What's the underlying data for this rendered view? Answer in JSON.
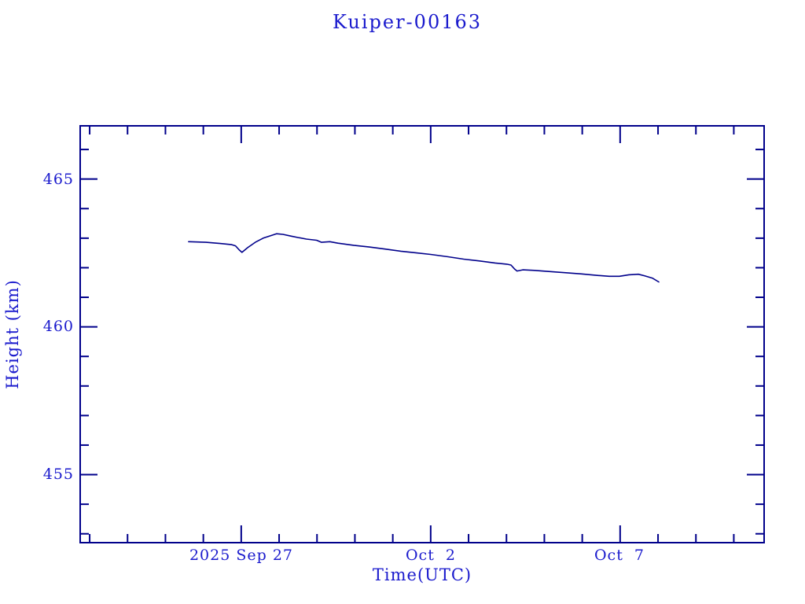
{
  "page": {
    "background_color": "#ffffff",
    "text_color": "#1a1acd",
    "axis_color": "#00008B"
  },
  "chart_data": {
    "type": "line",
    "title": "Kuiper-00163",
    "xlabel": "Time(UTC)",
    "ylabel": "Height (km)",
    "grid": false,
    "legend": null,
    "line_color": "#00008B",
    "axis_color": "#00008B",
    "x_tick_labels": [
      "2025 Sep 27",
      "Oct  2",
      "Oct  7"
    ],
    "x_major_tick_days": [
      0,
      5,
      10
    ],
    "x_minor_tick_step_days": 1,
    "xlim_days_since_sep27": [
      -4.25,
      13.8
    ],
    "y_tick_labels": [
      "465",
      "460",
      "455"
    ],
    "y_major_tick_values": [
      465,
      460,
      455
    ],
    "y_minor_tick_step_km": 1,
    "ylim_km": [
      452.7,
      466.8
    ],
    "series": [
      {
        "name": "Kuiper-00163 height (km) vs days since 2025 Sep 27",
        "points": [
          [
            -1.39,
            462.88
          ],
          [
            -0.93,
            462.86
          ],
          [
            -0.56,
            462.82
          ],
          [
            -0.25,
            462.78
          ],
          [
            -0.15,
            462.74
          ],
          [
            -0.05,
            462.6
          ],
          [
            0.02,
            462.52
          ],
          [
            0.17,
            462.68
          ],
          [
            0.37,
            462.86
          ],
          [
            0.58,
            463.0
          ],
          [
            0.79,
            463.09
          ],
          [
            0.93,
            463.15
          ],
          [
            1.1,
            463.13
          ],
          [
            1.31,
            463.07
          ],
          [
            1.51,
            463.02
          ],
          [
            1.72,
            462.97
          ],
          [
            1.99,
            462.93
          ],
          [
            2.12,
            462.86
          ],
          [
            2.34,
            462.88
          ],
          [
            2.55,
            462.83
          ],
          [
            2.97,
            462.76
          ],
          [
            3.38,
            462.7
          ],
          [
            3.8,
            462.63
          ],
          [
            4.21,
            462.56
          ],
          [
            4.63,
            462.5
          ],
          [
            5.0,
            462.45
          ],
          [
            5.46,
            462.37
          ],
          [
            5.87,
            462.29
          ],
          [
            6.29,
            462.23
          ],
          [
            6.7,
            462.16
          ],
          [
            7.01,
            462.12
          ],
          [
            7.12,
            462.09
          ],
          [
            7.22,
            461.95
          ],
          [
            7.28,
            461.89
          ],
          [
            7.43,
            461.93
          ],
          [
            7.74,
            461.91
          ],
          [
            8.15,
            461.87
          ],
          [
            8.57,
            461.83
          ],
          [
            8.98,
            461.79
          ],
          [
            9.4,
            461.74
          ],
          [
            9.71,
            461.71
          ],
          [
            9.98,
            461.71
          ],
          [
            10.23,
            461.76
          ],
          [
            10.48,
            461.78
          ],
          [
            10.64,
            461.73
          ],
          [
            10.85,
            461.65
          ],
          [
            11.02,
            461.52
          ]
        ]
      }
    ]
  }
}
